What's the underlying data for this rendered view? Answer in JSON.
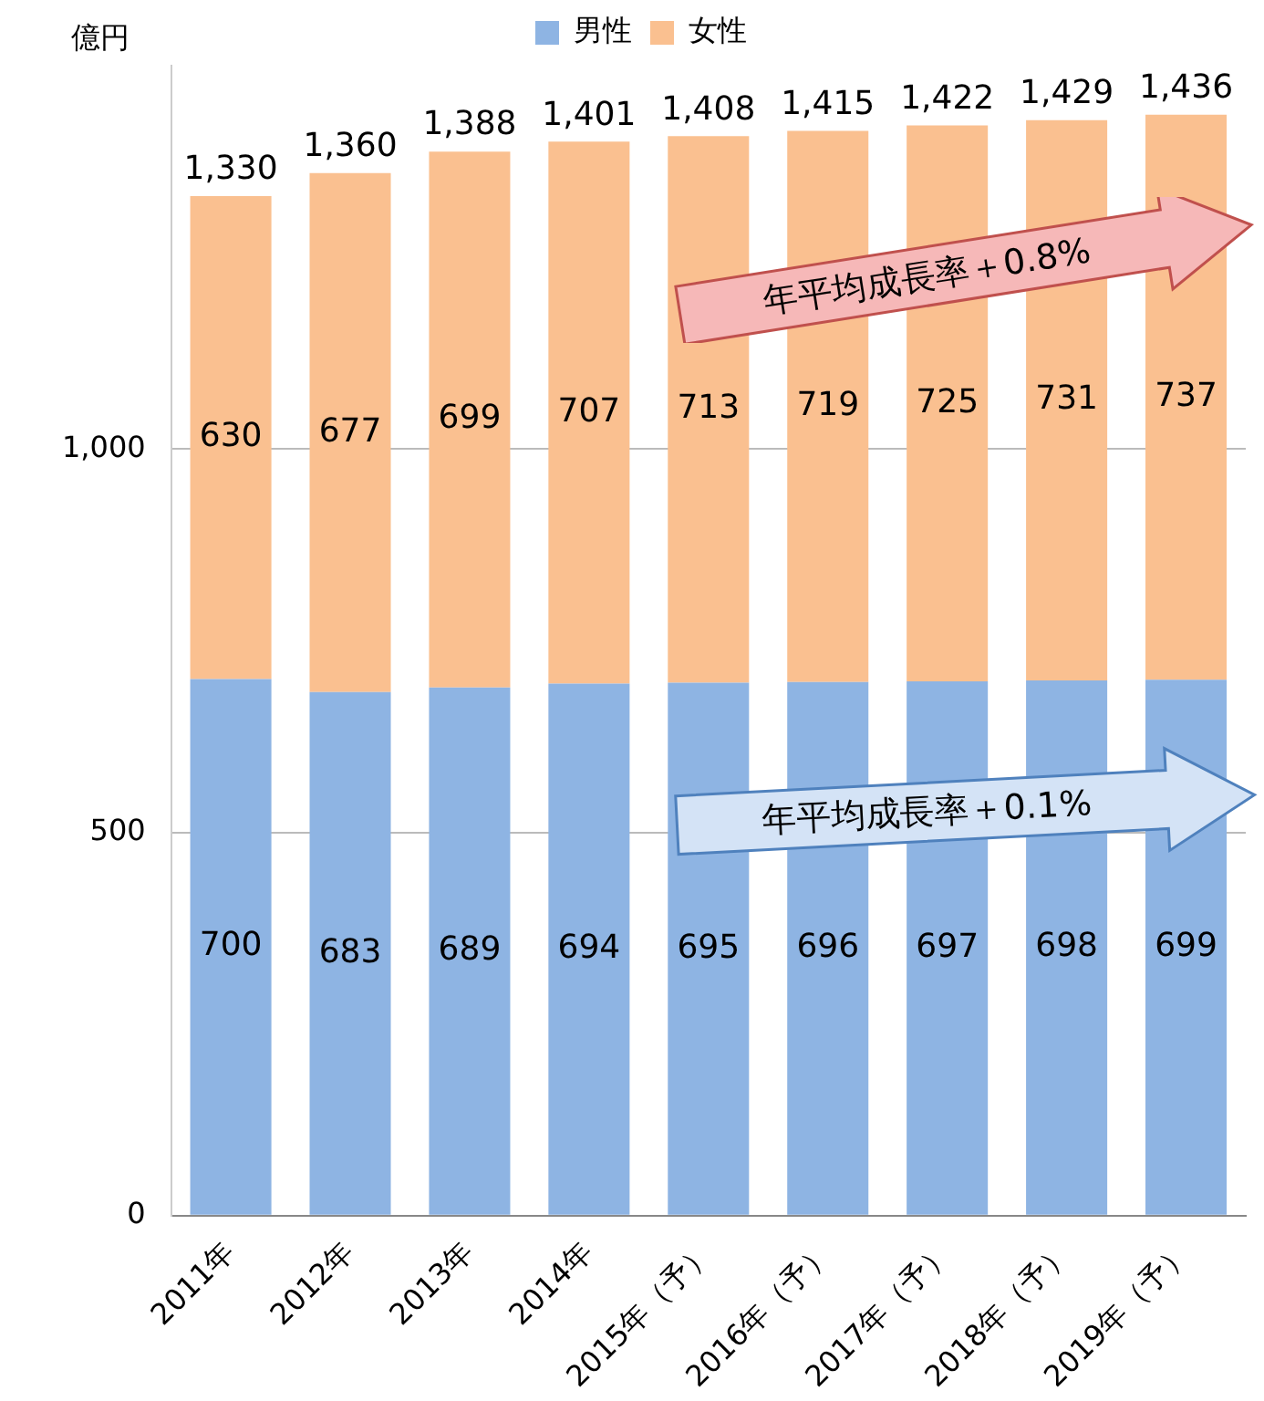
{
  "chart_data": {
    "type": "bar",
    "stacked": true,
    "ylabel": "億円",
    "categories": [
      "2011年",
      "2012年",
      "2013年",
      "2014年",
      "2015年（予）",
      "2016年（予）",
      "2017年（予）",
      "2018年（予）",
      "2019年（予）"
    ],
    "series": [
      {
        "name": "男性",
        "color": "#8eb4e3",
        "values": [
          700,
          683,
          689,
          694,
          695,
          696,
          697,
          698,
          699
        ]
      },
      {
        "name": "女性",
        "color": "#fac090",
        "values": [
          630,
          677,
          699,
          707,
          713,
          719,
          725,
          731,
          737
        ]
      }
    ],
    "totals": [
      "1,330",
      "1,360",
      "1,388",
      "1,401",
      "1,408",
      "1,415",
      "1,422",
      "1,429",
      "1,436"
    ],
    "data_labels": true,
    "ylim": [
      0,
      1500
    ],
    "yticks": [
      0,
      500,
      {
        "value": 1000,
        "label": "1,000"
      }
    ],
    "grid": "y",
    "legend": "top",
    "annotations": [
      "年平均成長率＋0.8%",
      "年平均成長率＋0.1%"
    ]
  }
}
